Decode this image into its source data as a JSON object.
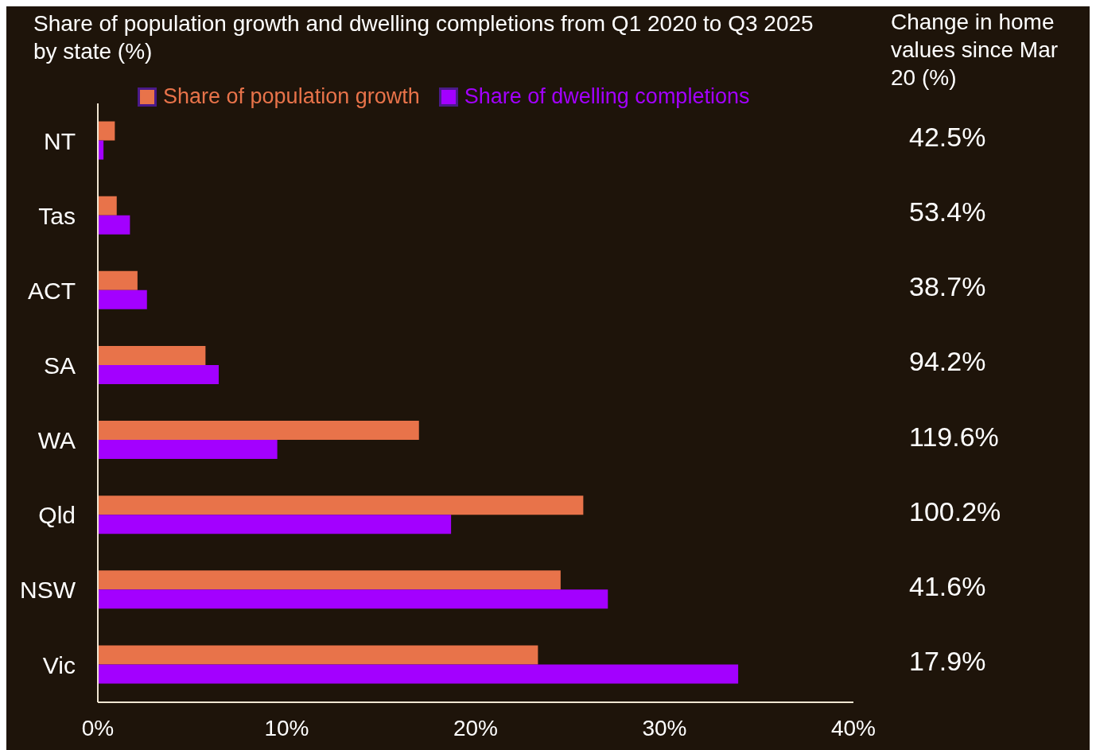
{
  "chart_data": {
    "type": "bar",
    "orientation": "horizontal",
    "title": "Share of population growth and dwelling completions from Q1 2020 to Q3 2025 by state (%)",
    "categories": [
      "NT",
      "Tas",
      "ACT",
      "SA",
      "WA",
      "Qld",
      "NSW",
      "Vic"
    ],
    "series": [
      {
        "name": "Share of population growth",
        "color": "#e8734a",
        "values": [
          0.9,
          1.0,
          2.1,
          5.7,
          17.0,
          25.7,
          24.5,
          23.3
        ]
      },
      {
        "name": "Share of dwelling completions",
        "color": "#a300ff",
        "values": [
          0.3,
          1.7,
          2.6,
          6.4,
          9.5,
          18.7,
          27.0,
          33.9
        ]
      }
    ],
    "xlim": [
      0,
      40
    ],
    "xticks": [
      {
        "value": 0,
        "label": "0%"
      },
      {
        "value": 10,
        "label": "10%"
      },
      {
        "value": 20,
        "label": "20%"
      },
      {
        "value": 30,
        "label": "30%"
      },
      {
        "value": 40,
        "label": "40%"
      }
    ],
    "grid": false,
    "legend": "top",
    "annotations": [
      "Change in home values since Mar 20 (%)",
      "42.5%",
      "53.4%",
      "38.7%",
      "94.2%",
      "119.6%",
      "100.2%",
      "41.6%",
      "17.9%"
    ]
  }
}
